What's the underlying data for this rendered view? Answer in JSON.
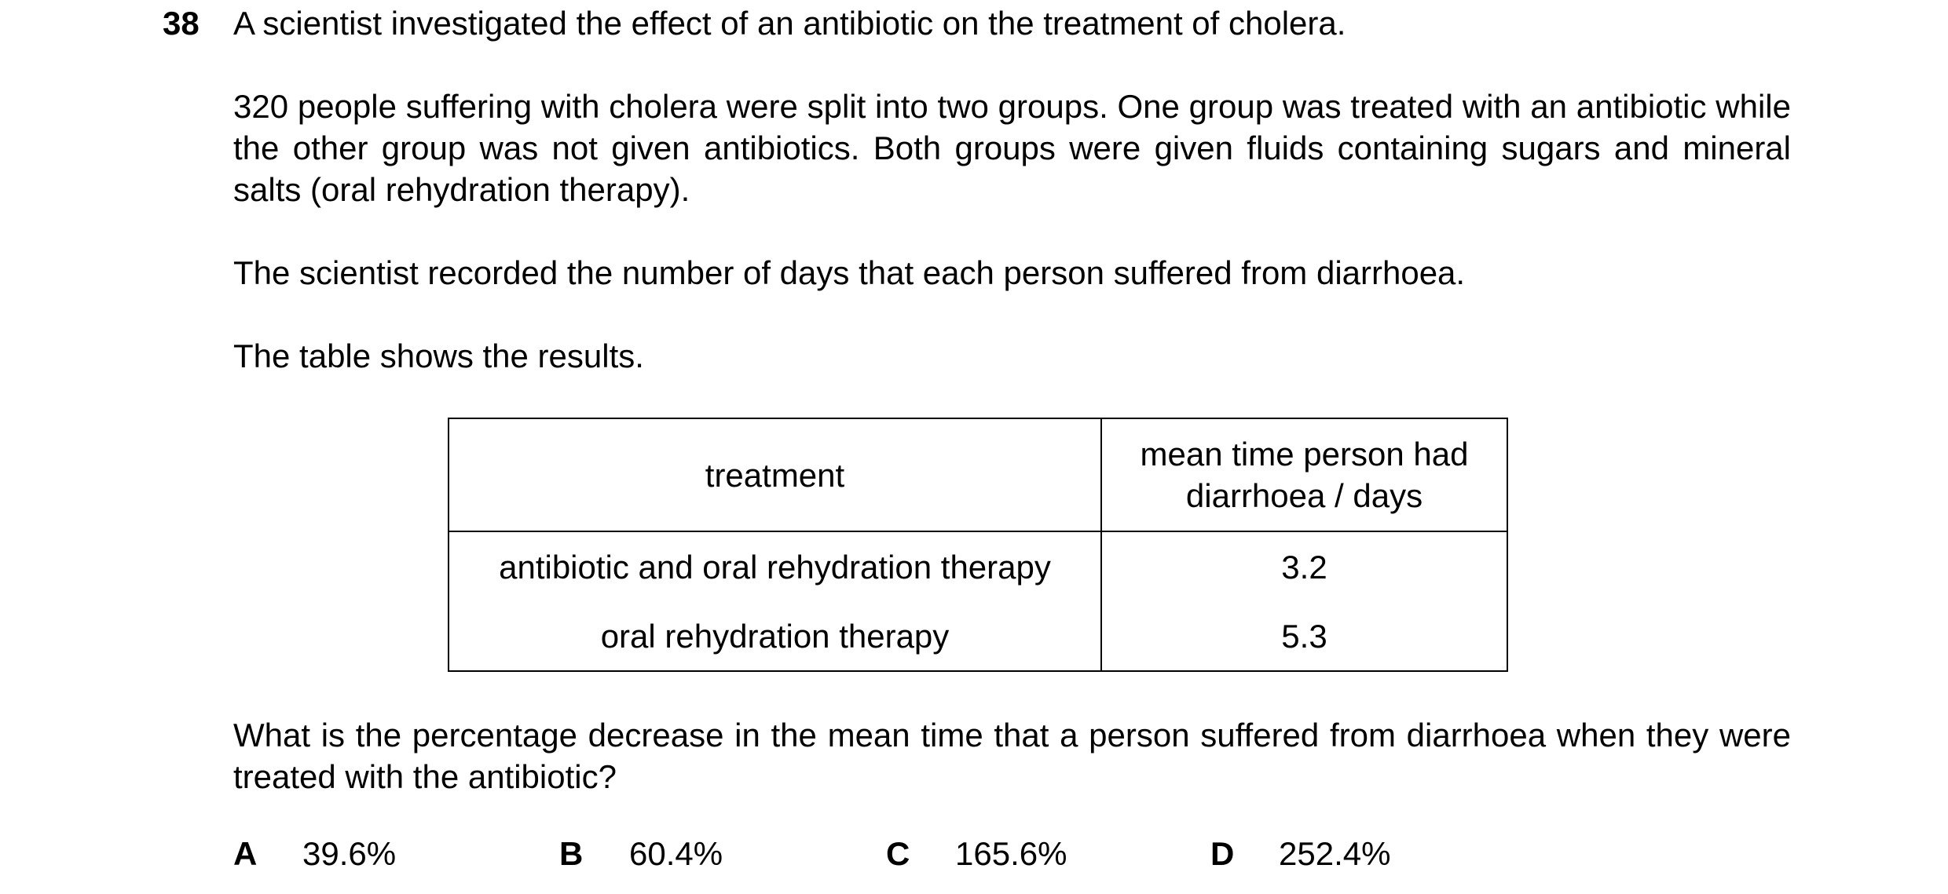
{
  "question": {
    "number": "38",
    "intro": "A scientist investigated the effect of an antibiotic on the treatment of cholera.",
    "method": "320 people suffering with cholera were split into two groups. One group was treated with an antibiotic while the other group was not given antibiotics. Both groups were given fluids containing sugars and mineral salts (oral rehydration therapy).",
    "record": "The scientist recorded the number of days that each person suffered from diarrhoea.",
    "table_intro": "The table shows the results.",
    "prompt": "What is the percentage decrease in the mean time that a person suffered from diarrhoea when they were treated with the antibiotic?"
  },
  "table": {
    "headers": {
      "treatment": "treatment",
      "time_line1": "mean time person had",
      "time_line2": "diarrhoea / days"
    },
    "rows": [
      {
        "treatment": "antibiotic and oral rehydration therapy",
        "time": "3.2"
      },
      {
        "treatment": "oral rehydration therapy",
        "time": "5.3"
      }
    ]
  },
  "options": [
    {
      "letter": "A",
      "text": "39.6%"
    },
    {
      "letter": "B",
      "text": "60.4%"
    },
    {
      "letter": "C",
      "text": "165.6%"
    },
    {
      "letter": "D",
      "text": "252.4%"
    }
  ]
}
